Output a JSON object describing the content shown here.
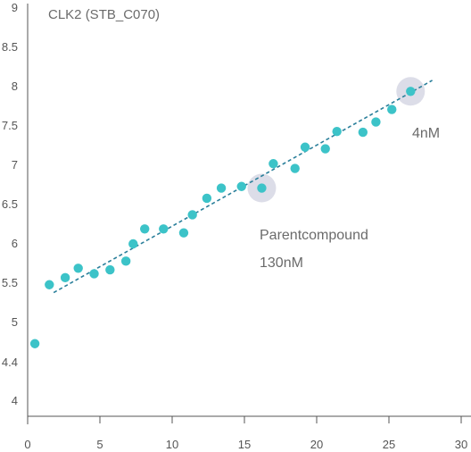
{
  "chart_data": {
    "type": "scatter",
    "title": "CLK2 (STB_C070)",
    "xlabel": "",
    "ylabel": "",
    "xlim": [
      0,
      30
    ],
    "ylim": [
      3.8,
      9
    ],
    "x_ticks": [
      0,
      5,
      10,
      15,
      20,
      25,
      30
    ],
    "y_ticks": [
      "4",
      "4.4",
      "5",
      "5.5",
      "6",
      "6.5",
      "7",
      "7.5",
      "8",
      "8.5",
      "9"
    ],
    "grid": false,
    "series": [
      {
        "color": "#3cc3c8",
        "points": [
          {
            "x": 0.5,
            "y": 4.73
          },
          {
            "x": 1.5,
            "y": 5.48
          },
          {
            "x": 2.6,
            "y": 5.57
          },
          {
            "x": 3.5,
            "y": 5.69
          },
          {
            "x": 4.6,
            "y": 5.62
          },
          {
            "x": 5.7,
            "y": 5.67
          },
          {
            "x": 6.8,
            "y": 5.78
          },
          {
            "x": 7.3,
            "y": 6.0
          },
          {
            "x": 8.1,
            "y": 6.19
          },
          {
            "x": 9.4,
            "y": 6.19
          },
          {
            "x": 10.8,
            "y": 6.14
          },
          {
            "x": 11.4,
            "y": 6.37
          },
          {
            "x": 12.4,
            "y": 6.58
          },
          {
            "x": 13.4,
            "y": 6.71
          },
          {
            "x": 14.8,
            "y": 6.73
          },
          {
            "x": 16.2,
            "y": 6.71
          },
          {
            "x": 17.0,
            "y": 7.02
          },
          {
            "x": 18.5,
            "y": 6.96
          },
          {
            "x": 19.2,
            "y": 7.23
          },
          {
            "x": 20.6,
            "y": 7.21
          },
          {
            "x": 21.4,
            "y": 7.43
          },
          {
            "x": 23.2,
            "y": 7.42
          },
          {
            "x": 24.1,
            "y": 7.55
          },
          {
            "x": 25.2,
            "y": 7.71
          },
          {
            "x": 26.5,
            "y": 7.94
          }
        ]
      }
    ],
    "trendline": {
      "x": [
        1.8,
        28.0
      ],
      "y": [
        5.38,
        8.08
      ],
      "color": "#2a7f9a",
      "style": "dashed"
    },
    "highlights": [
      {
        "x": 16.2,
        "y": 6.71,
        "label_lines": [
          "Parentcompound",
          "130nM"
        ]
      },
      {
        "x": 26.5,
        "y": 7.94,
        "label_lines": [
          "4nM"
        ]
      }
    ],
    "colors": {
      "point": "#3cc3c8",
      "trend": "#2a7f9a",
      "halo": "#dcdde8",
      "axis": "#555555",
      "text": "#6b6b6b"
    }
  }
}
